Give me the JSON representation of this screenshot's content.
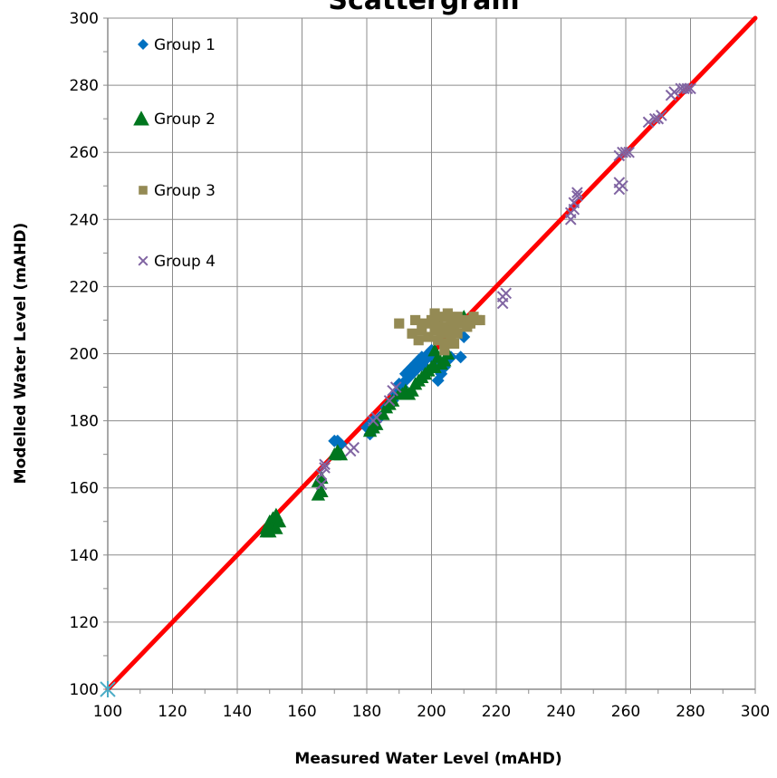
{
  "chart_data": {
    "type": "scatter",
    "title": "Scattergram",
    "xlabel": "Measured Water Level (mAHD)",
    "ylabel": "Modelled Water Level (mAHD)",
    "xlim": [
      100,
      300
    ],
    "ylim": [
      100,
      300
    ],
    "xticks": [
      100,
      120,
      140,
      160,
      180,
      200,
      220,
      240,
      260,
      280,
      300
    ],
    "yticks": [
      100,
      120,
      140,
      160,
      180,
      200,
      220,
      240,
      260,
      280,
      300
    ],
    "grid": true,
    "legend_position": "top-left",
    "reference_line": {
      "x": [
        100,
        300
      ],
      "y": [
        100,
        300
      ],
      "color": "#ff0000"
    },
    "origin_marker": {
      "x": 100,
      "y": 100,
      "color": "#4bacc6"
    },
    "series": [
      {
        "name": "Group 1",
        "marker": "diamond",
        "color": "#0070c0",
        "points": [
          [
            170,
            174
          ],
          [
            171,
            174
          ],
          [
            172,
            173
          ],
          [
            180,
            178
          ],
          [
            181,
            176
          ],
          [
            182,
            180
          ],
          [
            184,
            181
          ],
          [
            186,
            184
          ],
          [
            187,
            185
          ],
          [
            188,
            186
          ],
          [
            189,
            188
          ],
          [
            190,
            189
          ],
          [
            190,
            191
          ],
          [
            191,
            190
          ],
          [
            192,
            192
          ],
          [
            192,
            194
          ],
          [
            193,
            193
          ],
          [
            193,
            195
          ],
          [
            194,
            196
          ],
          [
            194,
            194
          ],
          [
            195,
            197
          ],
          [
            195,
            195
          ],
          [
            196,
            196
          ],
          [
            196,
            198
          ],
          [
            197,
            197
          ],
          [
            197,
            199
          ],
          [
            198,
            198
          ],
          [
            198,
            196
          ],
          [
            199,
            200
          ],
          [
            200,
            199
          ],
          [
            200,
            201
          ],
          [
            201,
            198
          ],
          [
            202,
            192
          ],
          [
            203,
            194
          ],
          [
            204,
            196
          ],
          [
            205,
            198
          ],
          [
            206,
            199
          ],
          [
            209,
            199
          ],
          [
            210,
            205
          ],
          [
            212,
            210
          ]
        ]
      },
      {
        "name": "Group 2",
        "marker": "triangle",
        "color": "#00761e",
        "points": [
          [
            149,
            147
          ],
          [
            149,
            148
          ],
          [
            150,
            149
          ],
          [
            150,
            150
          ],
          [
            151,
            149
          ],
          [
            151,
            151
          ],
          [
            152,
            150
          ],
          [
            152,
            152
          ],
          [
            153,
            150
          ],
          [
            150,
            147
          ],
          [
            152,
            148
          ],
          [
            165,
            158
          ],
          [
            165,
            162
          ],
          [
            166,
            159
          ],
          [
            166,
            163
          ],
          [
            170,
            170
          ],
          [
            171,
            171
          ],
          [
            172,
            170
          ],
          [
            181,
            177
          ],
          [
            182,
            178
          ],
          [
            183,
            179
          ],
          [
            185,
            182
          ],
          [
            186,
            184
          ],
          [
            187,
            185
          ],
          [
            188,
            186
          ],
          [
            190,
            188
          ],
          [
            191,
            188
          ],
          [
            192,
            189
          ],
          [
            193,
            188
          ],
          [
            194,
            189
          ],
          [
            195,
            191
          ],
          [
            196,
            192
          ],
          [
            197,
            193
          ],
          [
            198,
            194
          ],
          [
            199,
            195
          ],
          [
            200,
            196
          ],
          [
            201,
            196
          ],
          [
            201,
            201
          ],
          [
            202,
            199
          ],
          [
            203,
            197
          ],
          [
            204,
            198
          ],
          [
            205,
            200
          ],
          [
            210,
            211
          ]
        ]
      },
      {
        "name": "Group 3",
        "marker": "square",
        "color": "#948a54",
        "points": [
          [
            190,
            209
          ],
          [
            194,
            206
          ],
          [
            195,
            210
          ],
          [
            196,
            204
          ],
          [
            197,
            207
          ],
          [
            198,
            209
          ],
          [
            199,
            205
          ],
          [
            200,
            210
          ],
          [
            201,
            207
          ],
          [
            201,
            212
          ],
          [
            202,
            204
          ],
          [
            202,
            209
          ],
          [
            203,
            211
          ],
          [
            203,
            206
          ],
          [
            204,
            208
          ],
          [
            204,
            203
          ],
          [
            205,
            212
          ],
          [
            205,
            207
          ],
          [
            206,
            210
          ],
          [
            206,
            205
          ],
          [
            207,
            208
          ],
          [
            207,
            203
          ],
          [
            208,
            211
          ],
          [
            208,
            206
          ],
          [
            209,
            209
          ],
          [
            210,
            210
          ],
          [
            211,
            208
          ],
          [
            212,
            209
          ],
          [
            213,
            211
          ],
          [
            214,
            210
          ],
          [
            215,
            210
          ],
          [
            204,
            201
          ]
        ]
      },
      {
        "name": "Group 4",
        "marker": "x",
        "color": "#8064a2",
        "points": [
          [
            166,
            161
          ],
          [
            166,
            164
          ],
          [
            167,
            166
          ],
          [
            167,
            167
          ],
          [
            175,
            171
          ],
          [
            176,
            172
          ],
          [
            182,
            180
          ],
          [
            183,
            181
          ],
          [
            187,
            186
          ],
          [
            188,
            189
          ],
          [
            189,
            190
          ],
          [
            222,
            215
          ],
          [
            222,
            217
          ],
          [
            223,
            218
          ],
          [
            243,
            240
          ],
          [
            243,
            242
          ],
          [
            244,
            243
          ],
          [
            244,
            245
          ],
          [
            245,
            247
          ],
          [
            245,
            248
          ],
          [
            258,
            249
          ],
          [
            258,
            251
          ],
          [
            259,
            250
          ],
          [
            258,
            259
          ],
          [
            259,
            260
          ],
          [
            260,
            260
          ],
          [
            261,
            260
          ],
          [
            267,
            269
          ],
          [
            269,
            270
          ],
          [
            270,
            270
          ],
          [
            271,
            271
          ],
          [
            274,
            277
          ],
          [
            275,
            278
          ],
          [
            277,
            279
          ],
          [
            278,
            279
          ],
          [
            279,
            279
          ],
          [
            280,
            279
          ]
        ]
      }
    ]
  }
}
